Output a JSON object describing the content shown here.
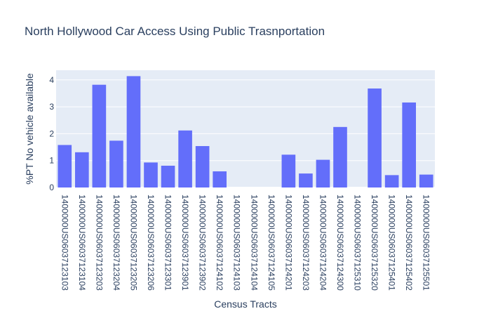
{
  "chart_data": {
    "type": "bar",
    "title": "North Hollywood Car Access Using Public Trasnportation",
    "xlabel": "Census Tracts",
    "ylabel": "%PT No vehicle available",
    "categories": [
      "1400000US06037123103",
      "1400000US06037123104",
      "1400000US06037123203",
      "1400000US06037123204",
      "1400000US06037123205",
      "1400000US06037123206",
      "1400000US06037123301",
      "1400000US06037123901",
      "1400000US06037123902",
      "1400000US06037124102",
      "1400000US06037124103",
      "1400000US06037124104",
      "1400000US06037124105",
      "1400000US06037124201",
      "1400000US06037124203",
      "1400000US06037124204",
      "1400000US06037124300",
      "1400000US06037125310",
      "1400000US06037125320",
      "1400000US06037125401",
      "1400000US06037125402",
      "1400000US06037125501"
    ],
    "values": [
      1.58,
      1.31,
      3.82,
      1.74,
      4.14,
      0.93,
      0.81,
      2.12,
      1.54,
      0.6,
      0,
      0,
      0,
      1.22,
      0.52,
      1.03,
      2.25,
      0,
      3.68,
      0.46,
      3.16,
      0.48
    ],
    "ylim": [
      0,
      4.36
    ],
    "yticks": [
      0,
      1,
      2,
      3,
      4
    ],
    "ytick_labels": [
      "0",
      "1",
      "2",
      "3",
      "4"
    ],
    "grid": true,
    "legend": "none",
    "colors": {
      "bar": "#636efa",
      "plot_background": "#e5ecf6",
      "grid": "#ffffff",
      "text": "#2a3f5f"
    }
  }
}
